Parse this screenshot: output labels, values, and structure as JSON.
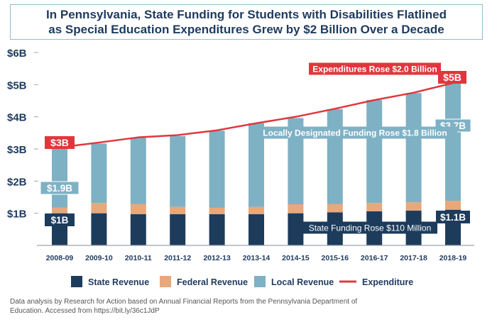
{
  "title": {
    "line1": "In Pennsylvania, State Funding for Students with Disabilities Flatlined",
    "line2": "as Special Education Expenditures Grew by $2 Billion Over a Decade"
  },
  "chart_data": {
    "type": "bar",
    "stacked": true,
    "categories": [
      "2008-09",
      "2009-10",
      "2010-11",
      "2011-12",
      "2012-13",
      "2013-14",
      "2014-15",
      "2015-16",
      "2016-17",
      "2017-18",
      "2018-19"
    ],
    "series": [
      {
        "name": "State Revenue",
        "color": "#1d3c5c",
        "values": [
          1.0,
          1.0,
          0.97,
          0.97,
          0.97,
          0.97,
          1.0,
          1.03,
          1.06,
          1.08,
          1.11
        ]
      },
      {
        "name": "Federal Revenue",
        "color": "#e7a87b",
        "values": [
          0.18,
          0.32,
          0.32,
          0.23,
          0.2,
          0.23,
          0.28,
          0.26,
          0.26,
          0.26,
          0.28
        ]
      },
      {
        "name": "Local Revenue",
        "color": "#7fb1c4",
        "values": [
          1.87,
          1.85,
          2.06,
          2.2,
          2.4,
          2.6,
          2.68,
          2.95,
          3.2,
          3.4,
          3.65
        ]
      }
    ],
    "line": {
      "name": "Expenditure",
      "color": "#e0373e",
      "values": [
        3.05,
        3.2,
        3.36,
        3.43,
        3.58,
        3.8,
        4.0,
        4.25,
        4.52,
        4.75,
        5.05
      ]
    },
    "y_ticks": [
      {
        "value": 1,
        "label": "$1B"
      },
      {
        "value": 2,
        "label": "$2B"
      },
      {
        "value": 3,
        "label": "$3B"
      },
      {
        "value": 4,
        "label": "$4B"
      },
      {
        "value": 5,
        "label": "$5B"
      },
      {
        "value": 6,
        "label": "$6B"
      }
    ],
    "ylim": [
      0,
      6
    ],
    "xlabel": "",
    "ylabel": "",
    "grid": false,
    "legend_position": "bottom",
    "annotations": {
      "expenditures_rose": "Expenditures Rose $2.0 Billion",
      "locally_designated": "Locally Designated Funding Rose $1.8 Billion",
      "state_funding_rose": "State Funding Rose $110 Million"
    },
    "data_labels": {
      "exp_start": "$3B",
      "exp_end": "$5B",
      "local_start": "$1.9B",
      "local_end": "$3.7B",
      "state_start": "$1B",
      "state_end": "$1.1B"
    },
    "colors": {
      "axis": "#1f3a5f",
      "state": "#1d3c5c",
      "federal": "#e7a87b",
      "local": "#7fb1c4",
      "expenditure": "#e0373e"
    }
  },
  "source": {
    "line1": "Data analysis by Research for Action based on Annual Financial Reports from the Pennsylvania Department of",
    "line2": "Education. Accessed from https://bit.ly/36c1JdP"
  }
}
